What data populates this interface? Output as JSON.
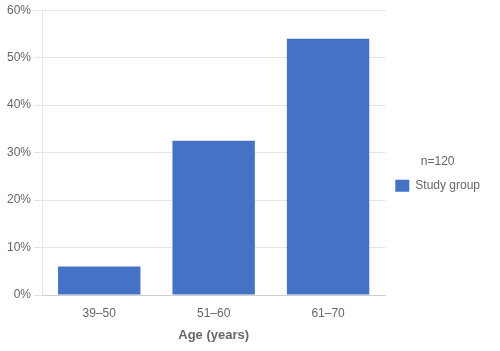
{
  "chart_data": {
    "type": "bar",
    "xlabel": "Age (years)",
    "categories": [
      "39–50",
      "51–60",
      "61–70"
    ],
    "series": [
      {
        "name": "Study group",
        "color": "#4472C4",
        "values": [
          6.0,
          32.5,
          54.0
        ]
      }
    ],
    "ylim": [
      0,
      60
    ],
    "yticks": [
      {
        "value": 0,
        "label": "0%"
      },
      {
        "value": 10,
        "label": "10%"
      },
      {
        "value": 20,
        "label": "20%"
      },
      {
        "value": 30,
        "label": "30%"
      },
      {
        "value": 40,
        "label": "40%"
      },
      {
        "value": 50,
        "label": "50%"
      },
      {
        "value": 60,
        "label": "60%"
      }
    ],
    "annotations": [
      "n=120"
    ],
    "legend": "right",
    "grid": true
  }
}
